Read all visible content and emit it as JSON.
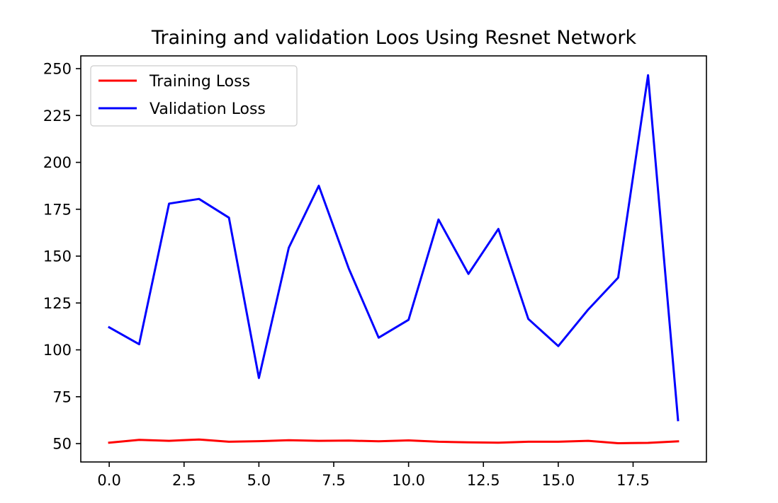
{
  "chart_data": {
    "type": "line",
    "title": "Training and validation Loos Using Resnet Network",
    "xlabel": "",
    "ylabel": "",
    "xlim": [
      -0.95,
      19.95
    ],
    "ylim": [
      40.2,
      256.8
    ],
    "x_ticks": [
      0.0,
      2.5,
      5.0,
      7.5,
      10.0,
      12.5,
      15.0,
      17.5
    ],
    "x_tick_labels": [
      "0.0",
      "2.5",
      "5.0",
      "7.5",
      "10.0",
      "12.5",
      "15.0",
      "17.5"
    ],
    "y_ticks": [
      50,
      75,
      100,
      125,
      150,
      175,
      200,
      225,
      250
    ],
    "y_tick_labels": [
      "50",
      "75",
      "100",
      "125",
      "150",
      "175",
      "200",
      "225",
      "250"
    ],
    "grid": false,
    "legend_position": "top-left",
    "x": [
      0,
      1,
      2,
      3,
      4,
      5,
      6,
      7,
      8,
      9,
      10,
      11,
      12,
      13,
      14,
      15,
      16,
      17,
      18,
      19
    ],
    "series": [
      {
        "name": "Training Loss",
        "color": "#ff0000",
        "values": [
          50.5,
          52.0,
          51.5,
          52.2,
          51.0,
          51.3,
          51.8,
          51.5,
          51.6,
          51.2,
          51.7,
          51.0,
          50.7,
          50.5,
          51.0,
          51.0,
          51.5,
          50.2,
          50.4,
          51.2
        ]
      },
      {
        "name": "Validation Loss",
        "color": "#0000ff",
        "values": [
          112.0,
          103.0,
          178.0,
          180.5,
          170.5,
          85.0,
          154.5,
          187.5,
          143.5,
          106.5,
          116.0,
          169.5,
          140.5,
          164.5,
          116.5,
          102.0,
          121.5,
          138.5,
          246.5,
          62.5
        ]
      }
    ]
  }
}
